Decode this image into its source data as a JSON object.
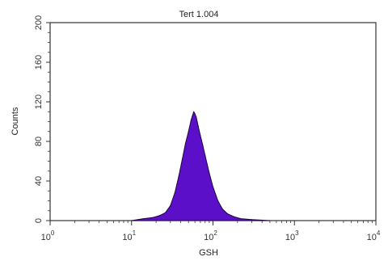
{
  "chart_data": {
    "type": "area",
    "title": "Tert 1.004",
    "xlabel": "GSH",
    "ylabel": "Counts",
    "x_scale": "log",
    "xlim": [
      1,
      10000
    ],
    "ylim": [
      0,
      200
    ],
    "x_ticks": [
      {
        "value": 1,
        "base": "10",
        "exp": "0"
      },
      {
        "value": 10,
        "base": "10",
        "exp": "1"
      },
      {
        "value": 100,
        "base": "10",
        "exp": "2"
      },
      {
        "value": 1000,
        "base": "10",
        "exp": "3"
      },
      {
        "value": 10000,
        "base": "10",
        "exp": "4"
      }
    ],
    "y_ticks": [
      {
        "value": 0,
        "label": "0"
      },
      {
        "value": 40,
        "label": "40"
      },
      {
        "value": 80,
        "label": "80"
      },
      {
        "value": 120,
        "label": "120"
      },
      {
        "value": 160,
        "label": "160"
      },
      {
        "value": 200,
        "label": "200"
      }
    ],
    "grid": false,
    "series": [
      {
        "color": "#5b0fc9",
        "outline": "#22063f",
        "x": [
          10,
          14,
          18,
          22,
          26,
          30,
          34,
          38,
          42,
          46,
          50,
          54,
          56,
          58,
          60,
          62,
          64,
          66,
          70,
          75,
          80,
          90,
          100,
          115,
          130,
          150,
          180,
          220,
          300,
          500
        ],
        "y": [
          0,
          2,
          3,
          5,
          8,
          15,
          28,
          45,
          62,
          78,
          90,
          102,
          106,
          110,
          108,
          105,
          100,
          95,
          86,
          76,
          66,
          48,
          34,
          20,
          12,
          7,
          4,
          2,
          1,
          0
        ]
      }
    ]
  }
}
